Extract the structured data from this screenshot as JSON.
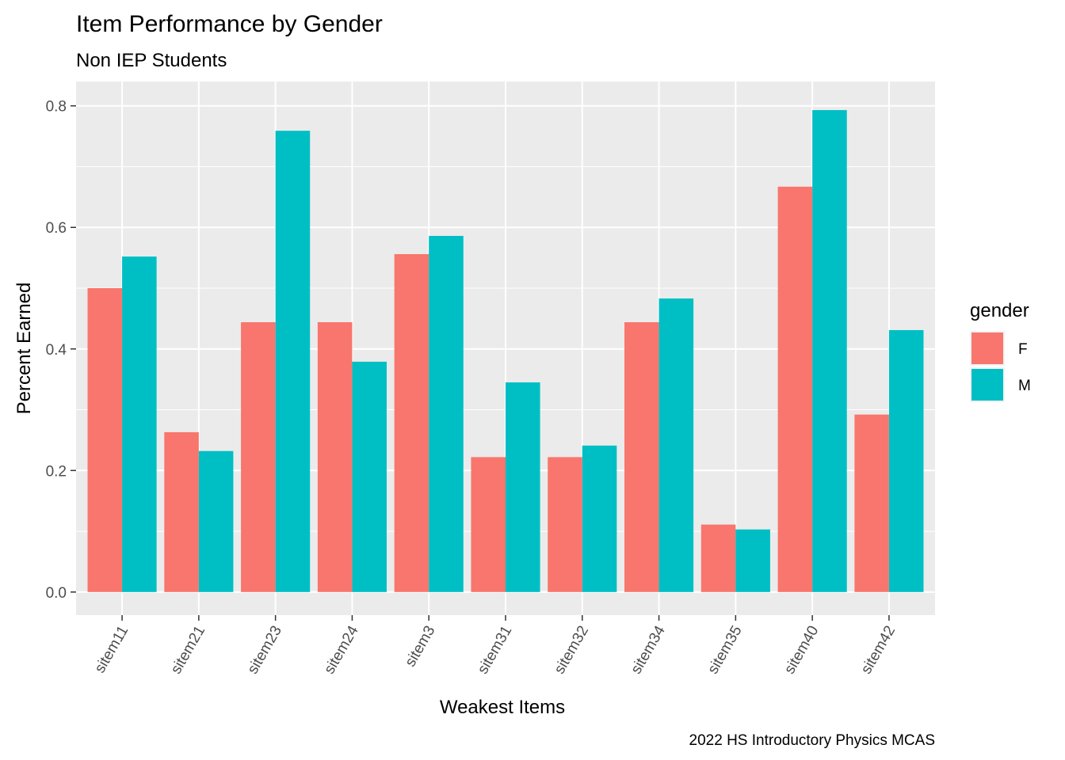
{
  "chart_data": {
    "type": "bar",
    "title": "Item Performance by Gender",
    "subtitle": "Non IEP Students",
    "caption": "2022 HS Introductory Physics MCAS",
    "xlabel": "Weakest Items",
    "ylabel": "Percent Earned",
    "ylim": [
      -0.038,
      0.84
    ],
    "yticks": [
      0.0,
      0.2,
      0.4,
      0.6,
      0.8
    ],
    "ytick_labels": [
      "0.0",
      "0.2",
      "0.4",
      "0.6",
      "0.8"
    ],
    "grid": true,
    "legend_position": "right",
    "legend_title": "gender",
    "categories": [
      "sitem11",
      "sitem21",
      "sitem23",
      "sitem24",
      "sitem3",
      "sitem31",
      "sitem32",
      "sitem34",
      "sitem35",
      "sitem40",
      "sitem42"
    ],
    "series": [
      {
        "name": "F",
        "color": "#F8766D",
        "values": [
          0.5,
          0.263,
          0.444,
          0.444,
          0.556,
          0.222,
          0.222,
          0.444,
          0.111,
          0.667,
          0.292
        ]
      },
      {
        "name": "M",
        "color": "#00BFC4",
        "values": [
          0.552,
          0.232,
          0.759,
          0.379,
          0.586,
          0.345,
          0.241,
          0.483,
          0.103,
          0.793,
          0.431
        ]
      }
    ]
  }
}
